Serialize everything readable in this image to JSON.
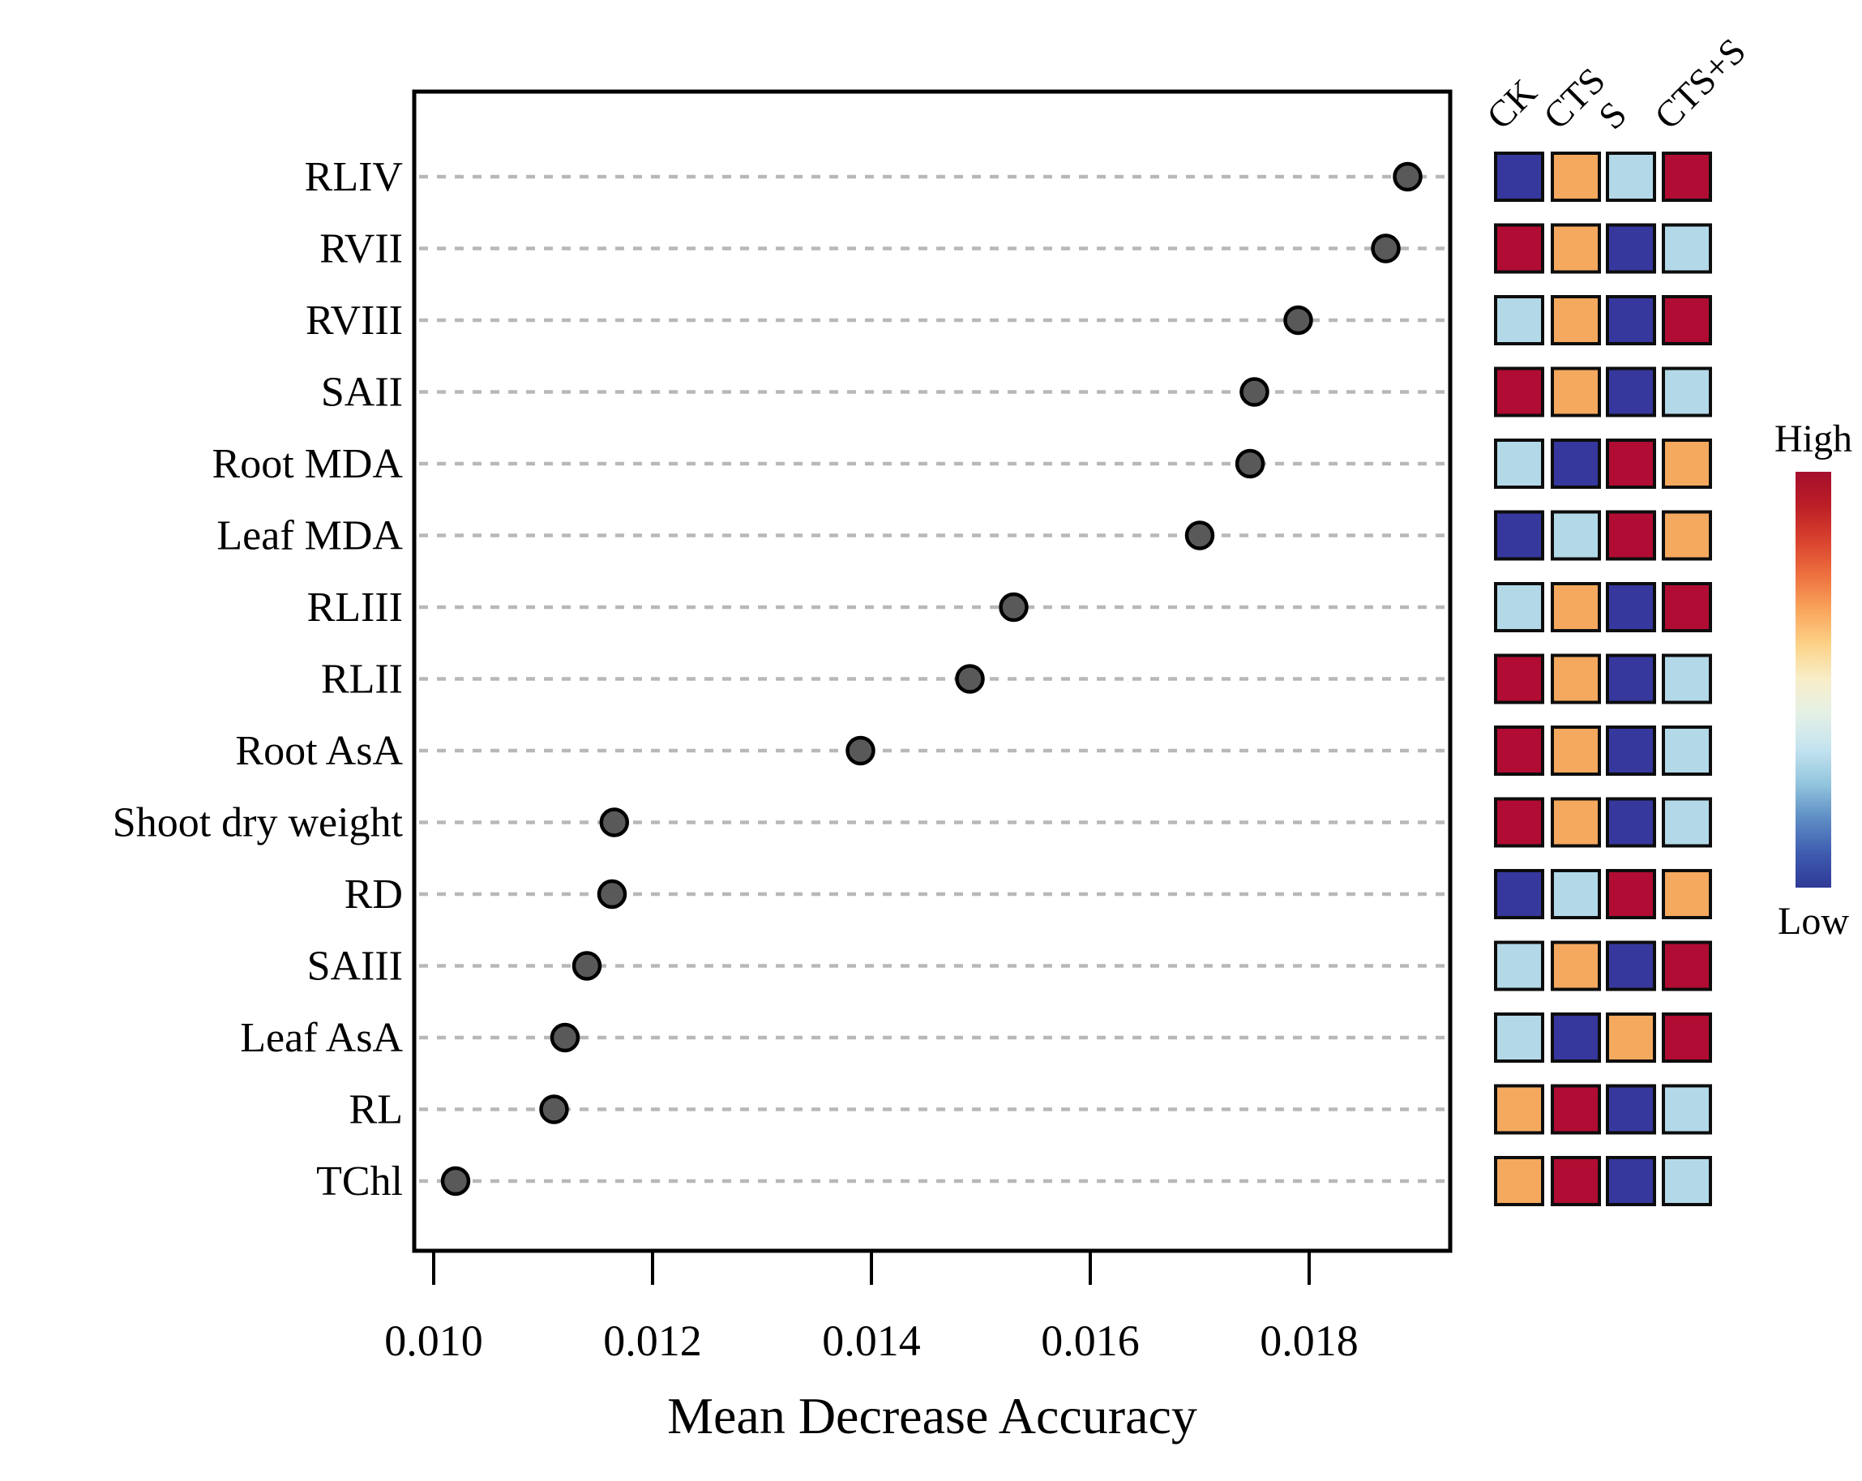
{
  "chart_data": {
    "type": "scatter",
    "orientation": "horizontal-dot-plot",
    "title": "",
    "xlabel": "Mean Decrease Accuracy",
    "ylabel": "",
    "xlim": [
      0.00983,
      0.01929
    ],
    "x_tick_labels": [
      "0.010",
      "0.012",
      "0.014",
      "0.016",
      "0.018"
    ],
    "x_tick_values": [
      0.01,
      0.012,
      0.014,
      0.016,
      0.018
    ],
    "grid": "horizontal dashed gray lines, one per category",
    "legend_position": "none",
    "categories": [
      "RLIV",
      "RVII",
      "RVIII",
      "SAII",
      "Root MDA",
      "Leaf MDA",
      "RLIII",
      "RLII",
      "Root AsA",
      "Shoot dry weight",
      "RD",
      "SAIII",
      "Leaf AsA",
      "RL",
      "TChl"
    ],
    "values": [
      0.0189,
      0.0187,
      0.0179,
      0.0175,
      0.01746,
      0.017,
      0.0153,
      0.0149,
      0.0139,
      0.01165,
      0.01163,
      0.0114,
      0.0112,
      0.0111,
      0.0102
    ],
    "point_style": {
      "fill": "#595959",
      "stroke": "#000000",
      "radius_px": 16
    },
    "heatmap": {
      "columns": [
        "CK",
        "CTS",
        "S",
        "CTS+S"
      ],
      "palette": {
        "high": "#b10c33",
        "mid_high": "#f5a95e",
        "mid_low": "#b3d9e8",
        "low": "#36389d"
      },
      "cells": [
        [
          "low",
          "mid_high",
          "mid_low",
          "high"
        ],
        [
          "high",
          "mid_high",
          "low",
          "mid_low"
        ],
        [
          "mid_low",
          "mid_high",
          "low",
          "high"
        ],
        [
          "high",
          "mid_high",
          "low",
          "mid_low"
        ],
        [
          "mid_low",
          "low",
          "high",
          "mid_high"
        ],
        [
          "low",
          "mid_low",
          "high",
          "mid_high"
        ],
        [
          "mid_low",
          "mid_high",
          "low",
          "high"
        ],
        [
          "high",
          "mid_high",
          "low",
          "mid_low"
        ],
        [
          "high",
          "mid_high",
          "low",
          "mid_low"
        ],
        [
          "high",
          "mid_high",
          "low",
          "mid_low"
        ],
        [
          "low",
          "mid_low",
          "high",
          "mid_high"
        ],
        [
          "mid_low",
          "mid_high",
          "low",
          "high"
        ],
        [
          "mid_low",
          "low",
          "mid_high",
          "high"
        ],
        [
          "mid_high",
          "high",
          "low",
          "mid_low"
        ],
        [
          "mid_high",
          "high",
          "low",
          "mid_low"
        ]
      ]
    },
    "colorbar": {
      "high_label": "High",
      "low_label": "Low",
      "gradient_top_to_bottom": [
        "#a50e2d",
        "#bc1f26",
        "#d9432e",
        "#ee713f",
        "#f9a65c",
        "#fcd389",
        "#f8eec9",
        "#e4f0e6",
        "#c4e3ef",
        "#93c5de",
        "#5e8ec5",
        "#3f5cb0",
        "#2f3a97"
      ]
    }
  }
}
